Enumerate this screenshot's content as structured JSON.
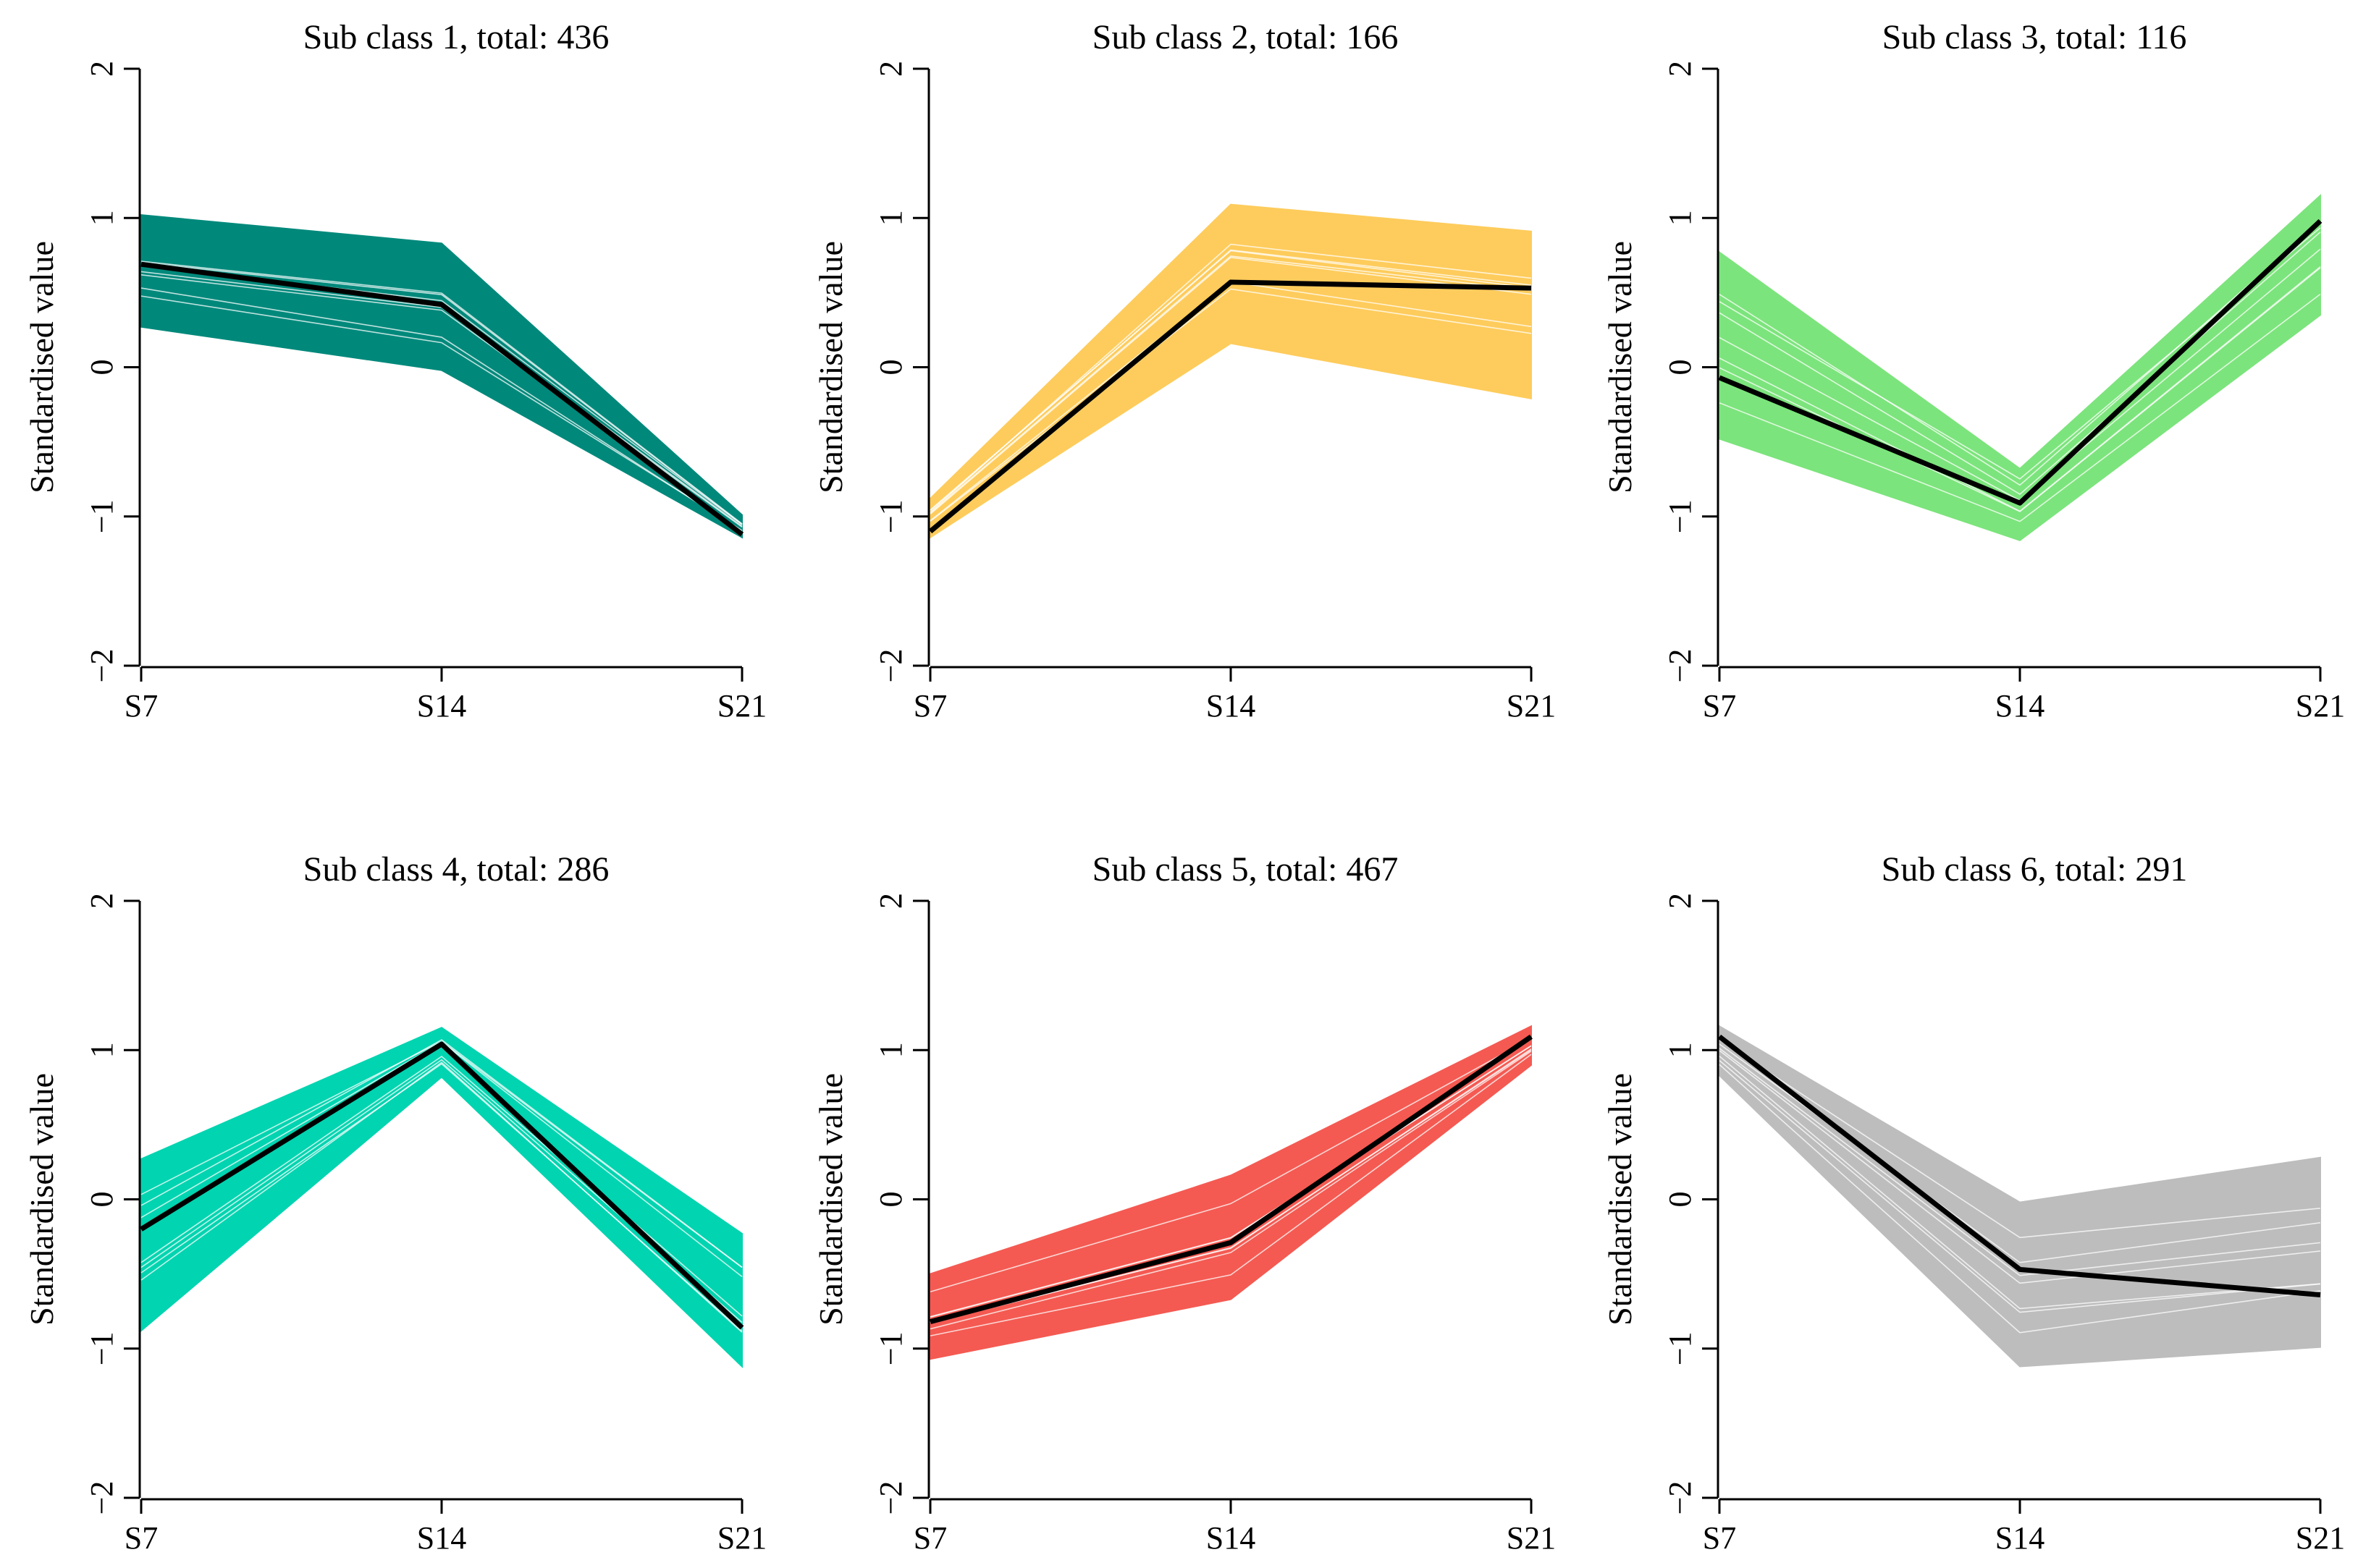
{
  "chart_data": [
    {
      "type": "line",
      "title": "Sub class 1, total: 436",
      "xlabel": "",
      "ylabel": "Standardised value",
      "categories": [
        "S7",
        "S14",
        "S21"
      ],
      "ylim": [
        -2,
        2
      ],
      "yticks": [
        "−2",
        "−1",
        "0",
        "1",
        "2"
      ],
      "color": "#00897b",
      "series": [
        {
          "name": "mean",
          "values": [
            0.69,
            0.42,
            -1.12
          ]
        },
        {
          "name": "max",
          "values": [
            1.02,
            0.83,
            -0.99
          ]
        },
        {
          "name": "min",
          "values": [
            0.27,
            -0.02,
            -1.14
          ]
        }
      ]
    },
    {
      "type": "line",
      "title": "Sub class 2, total: 166",
      "xlabel": "",
      "ylabel": "Standardised value",
      "categories": [
        "S7",
        "S14",
        "S21"
      ],
      "ylim": [
        -2,
        2
      ],
      "yticks": [
        "−2",
        "−1",
        "0",
        "1",
        "2"
      ],
      "color": "#fecc5c",
      "series": [
        {
          "name": "mean",
          "values": [
            -1.1,
            0.57,
            0.53
          ]
        },
        {
          "name": "max",
          "values": [
            -0.88,
            1.09,
            0.91
          ]
        },
        {
          "name": "min",
          "values": [
            -1.14,
            0.16,
            -0.21
          ]
        }
      ]
    },
    {
      "type": "line",
      "title": "Sub class 3, total: 116",
      "xlabel": "",
      "ylabel": "Standardised value",
      "categories": [
        "S7",
        "S14",
        "S21"
      ],
      "ylim": [
        -2,
        2
      ],
      "yticks": [
        "−2",
        "−1",
        "0",
        "1",
        "2"
      ],
      "color": "#7ce47c",
      "series": [
        {
          "name": "mean",
          "values": [
            -0.07,
            -0.91,
            0.98
          ]
        },
        {
          "name": "max",
          "values": [
            0.77,
            -0.68,
            1.15
          ]
        },
        {
          "name": "min",
          "values": [
            -0.48,
            -1.16,
            0.35
          ]
        }
      ]
    },
    {
      "type": "line",
      "title": "Sub class 4, total: 286",
      "xlabel": "",
      "ylabel": "Standardised value",
      "categories": [
        "S7",
        "S14",
        "S21"
      ],
      "ylim": [
        -2,
        2
      ],
      "yticks": [
        "−2",
        "−1",
        "0",
        "1",
        "2"
      ],
      "color": "#00d4b0",
      "series": [
        {
          "name": "mean",
          "values": [
            -0.2,
            1.04,
            -0.86
          ]
        },
        {
          "name": "max",
          "values": [
            0.27,
            1.15,
            -0.23
          ]
        },
        {
          "name": "min",
          "values": [
            -0.88,
            0.82,
            -1.12
          ]
        }
      ]
    },
    {
      "type": "line",
      "title": "Sub class 5, total: 467",
      "xlabel": "",
      "ylabel": "Standardised value",
      "categories": [
        "S7",
        "S14",
        "S21"
      ],
      "ylim": [
        -2,
        2
      ],
      "yticks": [
        "−2",
        "−1",
        "0",
        "1",
        "2"
      ],
      "color": "#f45a52",
      "series": [
        {
          "name": "mean",
          "values": [
            -0.82,
            -0.29,
            1.09
          ]
        },
        {
          "name": "max",
          "values": [
            -0.5,
            0.16,
            1.16
          ]
        },
        {
          "name": "min",
          "values": [
            -1.07,
            -0.67,
            0.9
          ]
        }
      ]
    },
    {
      "type": "line",
      "title": "Sub class 6, total: 291",
      "xlabel": "",
      "ylabel": "Standardised value",
      "categories": [
        "S7",
        "S14",
        "S21"
      ],
      "ylim": [
        -2,
        2
      ],
      "yticks": [
        "−2",
        "−1",
        "0",
        "1",
        "2"
      ],
      "color": "#bdbdbd",
      "series": [
        {
          "name": "mean",
          "values": [
            1.09,
            -0.47,
            -0.64
          ]
        },
        {
          "name": "max",
          "values": [
            1.16,
            -0.02,
            0.28
          ]
        },
        {
          "name": "min",
          "values": [
            0.83,
            -1.12,
            -0.99
          ]
        }
      ]
    }
  ]
}
